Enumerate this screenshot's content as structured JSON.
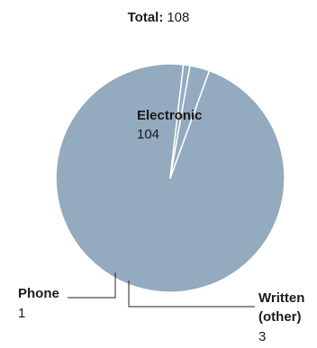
{
  "chart_data": {
    "type": "pie",
    "title_label": "Total:",
    "title_value": "108",
    "start_angle_deg": 20,
    "slices": [
      {
        "name": "Electronic",
        "value": 104,
        "label": "104",
        "color": "#93aabf"
      },
      {
        "name": "Phone",
        "value": 1,
        "label": "1",
        "color": "#93aabf"
      },
      {
        "name": "Written (other)",
        "name_lines": [
          "Written",
          "(other)"
        ],
        "value": 3,
        "label": "3",
        "color": "#93aabf"
      }
    ],
    "separator_color": "#ffffff"
  }
}
